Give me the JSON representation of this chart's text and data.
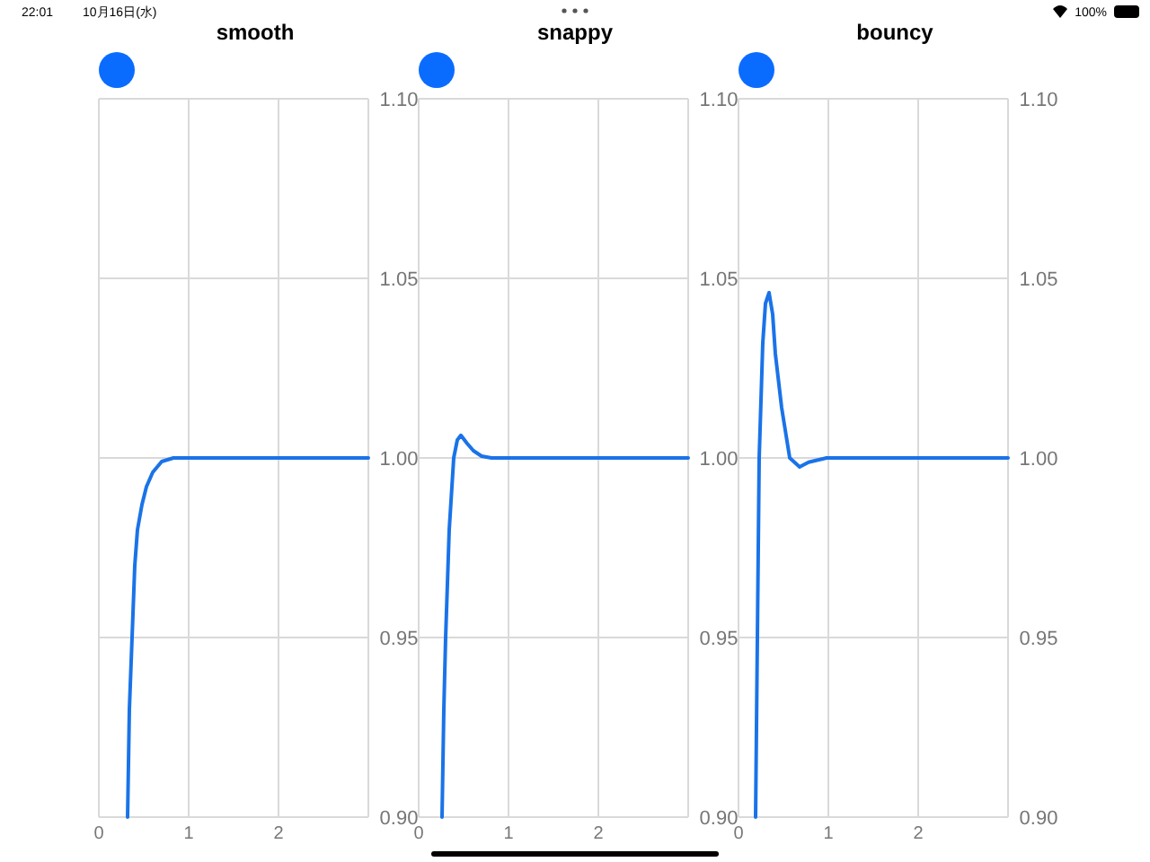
{
  "chart_data": [
    {
      "type": "line",
      "title": "smooth",
      "annotations": [
        "22:01",
        "10月16日(水)",
        "100%"
      ],
      "xlim": [
        0,
        3
      ],
      "ylim": [
        0.9,
        1.1
      ],
      "xticks": [
        0,
        1,
        2
      ],
      "yticks": [
        {
          "value": 0.9,
          "label": "0.90"
        },
        {
          "value": 0.95,
          "label": "0.95"
        },
        {
          "value": 1.0,
          "label": "1.00"
        },
        {
          "value": 1.05,
          "label": "1.05"
        },
        {
          "value": 1.1,
          "label": "1.10"
        }
      ],
      "grid": true,
      "series": [
        {
          "color": "#1a73e8",
          "x": [
            0.32,
            0.34,
            0.37,
            0.4,
            0.43,
            0.48,
            0.53,
            0.6,
            0.7,
            0.83,
            1.0,
            2.0,
            3.0
          ],
          "values": [
            0.9,
            0.93,
            0.95,
            0.97,
            0.98,
            0.987,
            0.992,
            0.996,
            0.999,
            1.0,
            1.0,
            1.0,
            1.0
          ]
        }
      ]
    },
    {
      "type": "line",
      "title": "snappy",
      "xlim": [
        0,
        3
      ],
      "ylim": [
        0.9,
        1.1
      ],
      "xticks": [
        0,
        1,
        2
      ],
      "yticks": [
        {
          "value": 0.9,
          "label": "0.90"
        },
        {
          "value": 0.95,
          "label": "0.95"
        },
        {
          "value": 1.0,
          "label": "1.00"
        },
        {
          "value": 1.05,
          "label": "1.05"
        },
        {
          "value": 1.1,
          "label": "1.10"
        }
      ],
      "grid": true,
      "series": [
        {
          "color": "#1a73e8",
          "x": [
            0.26,
            0.28,
            0.3,
            0.34,
            0.39,
            0.43,
            0.47,
            0.54,
            0.61,
            0.7,
            0.81,
            1.0,
            2.0,
            3.0
          ],
          "values": [
            0.9,
            0.93,
            0.95,
            0.98,
            1.0,
            1.005,
            1.0063,
            1.004,
            1.002,
            1.0005,
            1.0,
            1.0,
            1.0,
            1.0
          ]
        }
      ]
    },
    {
      "type": "line",
      "title": "bouncy",
      "xlim": [
        0,
        3
      ],
      "ylim": [
        0.9,
        1.1
      ],
      "xticks": [
        0,
        1,
        2
      ],
      "yticks": [
        {
          "value": 0.9,
          "label": "0.90"
        },
        {
          "value": 0.95,
          "label": "0.95"
        },
        {
          "value": 1.0,
          "label": "1.00"
        },
        {
          "value": 1.05,
          "label": "1.05"
        },
        {
          "value": 1.1,
          "label": "1.10"
        }
      ],
      "grid": true,
      "series": [
        {
          "color": "#1a73e8",
          "x": [
            0.19,
            0.23,
            0.27,
            0.3,
            0.34,
            0.38,
            0.41,
            0.48,
            0.57,
            0.68,
            0.78,
            0.98,
            2.0,
            3.0
          ],
          "values": [
            0.9,
            1.0,
            1.032,
            1.043,
            1.046,
            1.04,
            1.029,
            1.014,
            1.0,
            0.9975,
            0.9988,
            1.0,
            1.0,
            1.0
          ]
        }
      ]
    }
  ]
}
